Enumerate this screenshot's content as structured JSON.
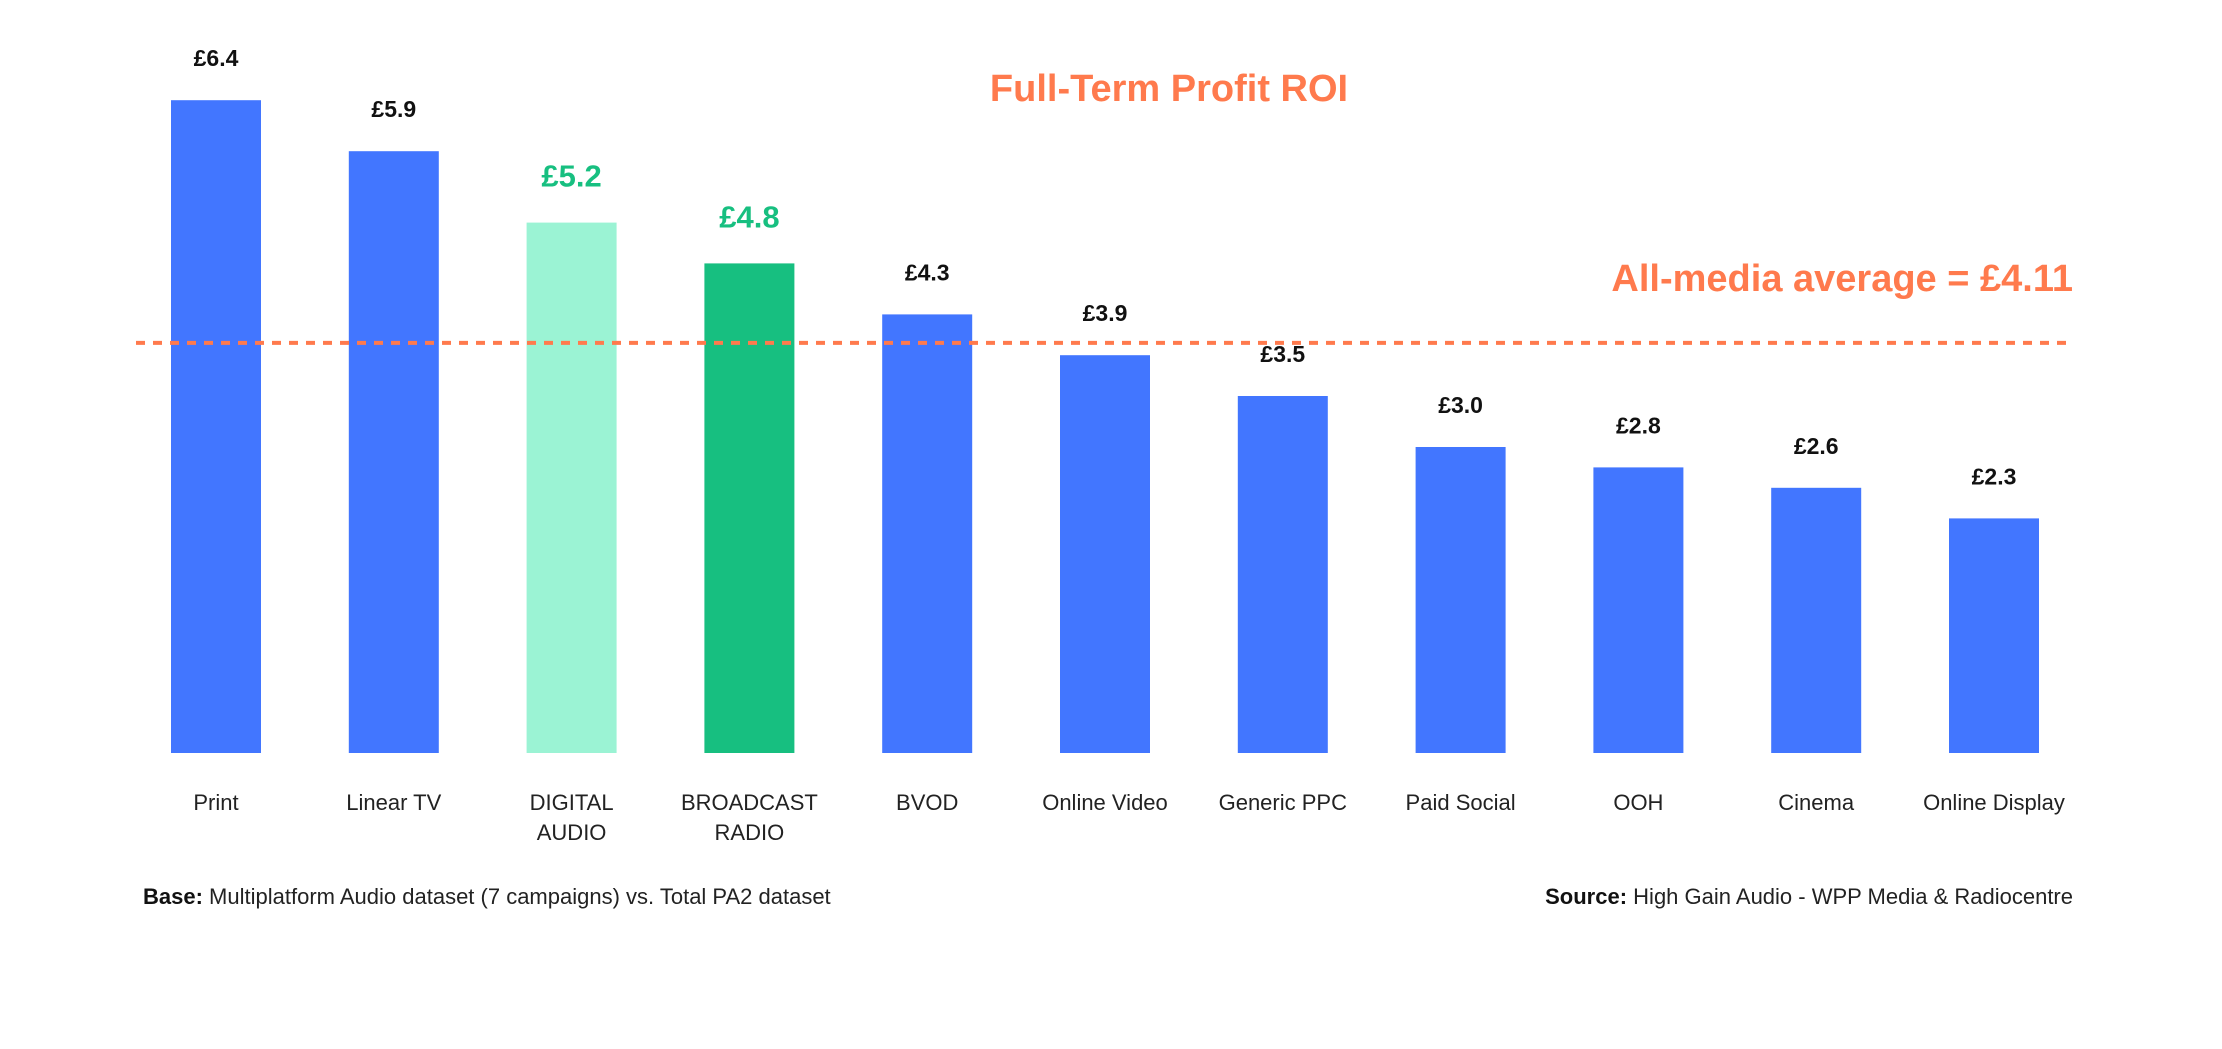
{
  "chart_data": {
    "type": "bar",
    "title": "Full-Term Profit ROI",
    "categories": [
      "Print",
      "Linear TV",
      "DIGITAL AUDIO",
      "BROADCAST RADIO",
      "BVOD",
      "Online Video",
      "Generic PPC",
      "Paid Social",
      "OOH",
      "Cinema",
      "Online Display"
    ],
    "values": [
      6.4,
      5.9,
      5.2,
      4.8,
      4.3,
      3.9,
      3.5,
      3.0,
      2.8,
      2.6,
      2.3
    ],
    "value_labels": [
      "£6.4",
      "£5.9",
      "£5.2",
      "£4.8",
      "£4.3",
      "£3.9",
      "£3.5",
      "£3.0",
      "£2.8",
      "£2.6",
      "£2.3"
    ],
    "highlight": [
      false,
      false,
      "light",
      true,
      false,
      false,
      false,
      false,
      false,
      false,
      false
    ],
    "xlabel": "",
    "ylabel": "",
    "ylim": [
      0,
      6.4
    ],
    "grid": false,
    "reference_line": {
      "value": 4.11,
      "label": "All-media average = £4.11"
    },
    "colors": {
      "default": "#4276FF",
      "light": "#9BF3D4",
      "highlight": "#17BF80",
      "accent": "#FF7A4D",
      "highlight_label": "#17BF80"
    }
  },
  "footer": {
    "base_label": "Base:",
    "base_text": "Multiplatform Audio dataset (7 campaigns) vs. Total PA2 dataset",
    "source_label": "Source:",
    "source_text": "High Gain Audio - WPP Media & Radiocentre"
  }
}
